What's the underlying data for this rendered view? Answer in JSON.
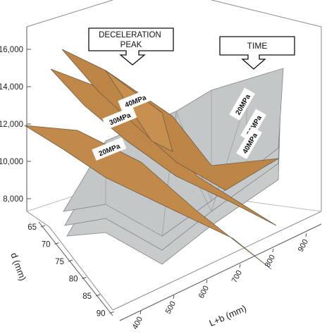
{
  "chart_data": {
    "type": "surface3d",
    "title": "",
    "z_ticks": [
      "8,000",
      "10,000",
      "12,000",
      "14,000",
      "16,000"
    ],
    "y_ticks": [
      "65",
      "70",
      "75",
      "80",
      "85",
      "90"
    ],
    "x_ticks": [
      "400",
      "500",
      "600",
      "700",
      "800",
      "900"
    ],
    "xlabel": "L+b (mm)",
    "ylabel": "d (mm)",
    "callouts": {
      "peak": "DECELERATION PEAK",
      "time": "TIME"
    },
    "series": [
      {
        "group": "DECELERATION PEAK",
        "name": "40MPa"
      },
      {
        "group": "DECELERATION PEAK",
        "name": "30MPa"
      },
      {
        "group": "DECELERATION PEAK",
        "name": "20MPa"
      },
      {
        "group": "TIME",
        "name": "20MPa"
      },
      {
        "group": "TIME",
        "name": "30MPa"
      },
      {
        "group": "TIME",
        "name": "40MPa"
      }
    ],
    "colors": {
      "peak_surface": "#c28a4a",
      "time_surface": "#c8cbcb",
      "frame": "#8a8a8a"
    }
  }
}
